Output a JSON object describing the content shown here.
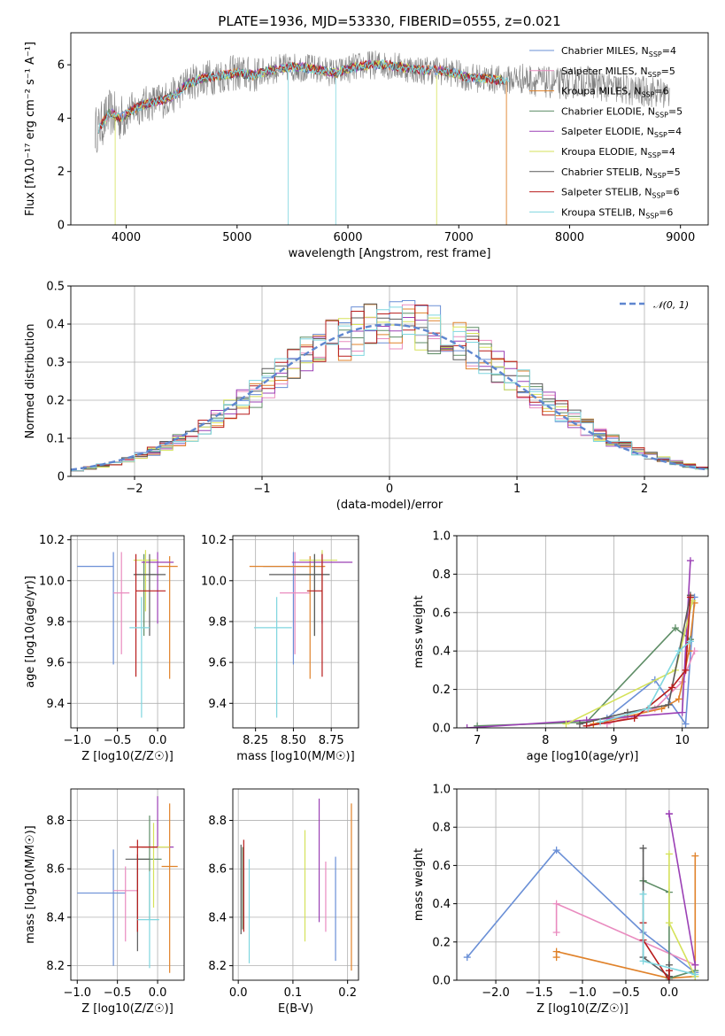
{
  "title": "PLATE=1936, MJD=53330, FIBERID=0555, z=0.021",
  "series_colors": [
    "#6a8fd6",
    "#e98bbf",
    "#e0822a",
    "#5e8d66",
    "#9b40b5",
    "#d5e25a",
    "#5a5a5a",
    "#b81c1c",
    "#7fd6df"
  ],
  "chart_data": [
    {
      "type": "line",
      "name": "spectrum",
      "xlabel": "wavelength [Angstrom, rest frame]",
      "ylabel": "Flux [fλ10⁻¹⁷ erg cm⁻² s⁻¹ A⁻¹]",
      "xlim": [
        3500,
        9250
      ],
      "ylim": [
        0,
        7.2
      ],
      "xticks": [
        4000,
        5000,
        6000,
        7000,
        8000,
        9000
      ],
      "yticks": [
        0,
        2,
        4,
        6
      ],
      "data_color": "#808080",
      "legend": [
        "Chabrier MILES, N_SSP=4",
        "Salpeter MILES, N_SSP=5",
        "Kroupa MILES, N_SSP=6",
        "Chabrier ELODIE, N_SSP=5",
        "Salpeter ELODIE, N_SSP=4",
        "Kroupa ELODIE, N_SSP=4",
        "Chabrier STELIB, N_SSP=5",
        "Salpeter STELIB, N_SSP=6",
        "Kroupa STELIB, N_SSP=6"
      ],
      "model_x": [
        3750,
        3850,
        3950,
        4050,
        4150,
        4250,
        4350,
        4450,
        4550,
        4700,
        4850,
        5000,
        5150,
        5300,
        5450,
        5600,
        5750,
        5900,
        6050,
        6200,
        6350,
        6500,
        6650,
        6800,
        6950,
        7100,
        7250,
        7400,
        7550,
        7700,
        7850,
        8000,
        8150,
        8300,
        8450,
        8600,
        8750,
        8900
      ],
      "model_y": [
        3.6,
        4.2,
        4.0,
        4.3,
        4.5,
        4.6,
        4.7,
        4.9,
        5.3,
        5.5,
        5.6,
        5.7,
        5.6,
        5.8,
        5.9,
        5.9,
        5.8,
        5.7,
        5.9,
        6.0,
        6.0,
        5.9,
        5.8,
        5.8,
        5.7,
        5.5,
        5.5,
        5.4,
        5.5,
        5.4,
        5.3,
        5.3,
        5.4,
        5.2,
        5.1,
        5.0,
        5.0,
        4.9
      ]
    },
    {
      "type": "histogram",
      "name": "residuals",
      "xlabel": "(data-model)/error",
      "ylabel": "Normed distribution",
      "xlim": [
        -2.5,
        2.5
      ],
      "ylim": [
        0,
        0.5
      ],
      "xticks": [
        -2,
        -1,
        0,
        1,
        2
      ],
      "yticks": [
        0,
        0.1,
        0.2,
        0.3,
        0.4,
        0.5
      ],
      "legend": "𝒩(0, 1)",
      "bin_width": 0.1
    },
    {
      "type": "errorbar",
      "name": "age-vs-Z",
      "xlabel": "Z [log10(Z/Z☉)]",
      "ylabel": "age  [log10(age/yr)]",
      "xlim": [
        -1.08,
        0.33
      ],
      "ylim": [
        9.28,
        10.22
      ],
      "xticks": [
        -1.0,
        -0.5,
        0.0
      ],
      "yticks": [
        9.4,
        9.6,
        9.8,
        10.0,
        10.2
      ],
      "points": [
        {
          "x": -0.55,
          "xerr": [
            0.45,
            0.0
          ],
          "y": 10.07,
          "yerr": [
            0.48,
            0.07
          ]
        },
        {
          "x": -0.45,
          "xerr": [
            0.1,
            0.1
          ],
          "y": 9.94,
          "yerr": [
            0.3,
            0.2
          ]
        },
        {
          "x": 0.15,
          "xerr": [
            0.15,
            0.1
          ],
          "y": 10.07,
          "yerr": [
            0.55,
            0.05
          ]
        },
        {
          "x": -0.17,
          "xerr": [
            0.12,
            0.15
          ],
          "y": 10.03,
          "yerr": [
            0.3,
            0.1
          ]
        },
        {
          "x": 0.0,
          "xerr": [
            0.2,
            0.2
          ],
          "y": 10.09,
          "yerr": [
            0.3,
            0.05
          ]
        },
        {
          "x": -0.15,
          "xerr": [
            0.15,
            0.15
          ],
          "y": 10.1,
          "yerr": [
            0.25,
            0.05
          ]
        },
        {
          "x": -0.1,
          "xerr": [
            0.2,
            0.2
          ],
          "y": 10.03,
          "yerr": [
            0.3,
            0.1
          ]
        },
        {
          "x": -0.27,
          "xerr": [
            0.0,
            0.37
          ],
          "y": 9.95,
          "yerr": [
            0.42,
            0.18
          ]
        },
        {
          "x": -0.2,
          "xerr": [
            0.15,
            0.1
          ],
          "y": 9.77,
          "yerr": [
            0.44,
            0.15
          ]
        }
      ]
    },
    {
      "type": "errorbar",
      "name": "age-vs-mass",
      "xlabel": "mass [log10(M/M☉)]",
      "ylabel": "",
      "xlim": [
        8.1,
        8.93
      ],
      "ylim": [
        9.28,
        10.22
      ],
      "xticks": [
        8.25,
        8.5,
        8.75
      ],
      "yticks": [
        9.4,
        9.6,
        9.8,
        10.0,
        10.2
      ],
      "points": [
        {
          "x": 8.5,
          "xerr": [
            0.2,
            0.2
          ],
          "y": 10.07,
          "yerr": [
            0.48,
            0.07
          ]
        },
        {
          "x": 8.51,
          "xerr": [
            0.1,
            0.1
          ],
          "y": 9.94,
          "yerr": [
            0.3,
            0.2
          ]
        },
        {
          "x": 8.61,
          "xerr": [
            0.4,
            0.1
          ],
          "y": 10.07,
          "yerr": [
            0.55,
            0.05
          ]
        },
        {
          "x": 8.64,
          "xerr": [
            0.12,
            0.1
          ],
          "y": 10.03,
          "yerr": [
            0.3,
            0.1
          ]
        },
        {
          "x": 8.69,
          "xerr": [
            0.2,
            0.2
          ],
          "y": 10.09,
          "yerr": [
            0.3,
            0.05
          ]
        },
        {
          "x": 8.69,
          "xerr": [
            0.15,
            0.1
          ],
          "y": 10.1,
          "yerr": [
            0.25,
            0.05
          ]
        },
        {
          "x": 8.64,
          "xerr": [
            0.3,
            0.1
          ],
          "y": 10.03,
          "yerr": [
            0.3,
            0.1
          ]
        },
        {
          "x": 8.69,
          "xerr": [
            0.1,
            0.0
          ],
          "y": 9.95,
          "yerr": [
            0.42,
            0.18
          ]
        },
        {
          "x": 8.39,
          "xerr": [
            0.15,
            0.1
          ],
          "y": 9.77,
          "yerr": [
            0.44,
            0.15
          ]
        }
      ]
    },
    {
      "type": "line",
      "name": "mass-weight-vs-age",
      "xlabel": "age  [log10(age/yr)]",
      "ylabel": "mass weight",
      "xlim": [
        6.7,
        10.38
      ],
      "ylim": [
        0,
        1.0
      ],
      "xticks": [
        7,
        8,
        9,
        10
      ],
      "yticks": [
        0.0,
        0.2,
        0.4,
        0.6,
        0.8,
        1.0
      ],
      "series": [
        {
          "x": [
            8.9,
            9.6,
            10.05,
            10.18
          ],
          "y": [
            0.05,
            0.25,
            0.02,
            0.68
          ]
        },
        {
          "x": [
            8.9,
            9.6,
            10.0,
            10.18
          ],
          "y": [
            0.02,
            0.1,
            0.24,
            0.4
          ]
        },
        {
          "x": [
            8.7,
            9.2,
            9.7,
            9.95,
            10.1,
            10.18
          ],
          "y": [
            0.02,
            0.06,
            0.1,
            0.15,
            0.4,
            0.65
          ]
        },
        {
          "x": [
            7.0,
            8.6,
            9.9,
            10.12
          ],
          "y": [
            0.01,
            0.03,
            0.52,
            0.46
          ]
        },
        {
          "x": [
            6.85,
            8.6,
            10.0,
            10.12
          ],
          "y": [
            0.0,
            0.04,
            0.08,
            0.87
          ]
        },
        {
          "x": [
            8.3,
            9.9,
            10.15
          ],
          "y": [
            0.02,
            0.3,
            0.66
          ]
        },
        {
          "x": [
            8.5,
            9.2,
            9.8,
            10.12
          ],
          "y": [
            0.02,
            0.08,
            0.12,
            0.69
          ]
        },
        {
          "x": [
            8.6,
            9.3,
            9.85,
            10.05,
            10.12
          ],
          "y": [
            0.01,
            0.05,
            0.21,
            0.3,
            0.68
          ]
        },
        {
          "x": [
            8.8,
            9.5,
            9.95,
            10.12
          ],
          "y": [
            0.03,
            0.1,
            0.4,
            0.45
          ]
        }
      ]
    },
    {
      "type": "errorbar",
      "name": "mass-vs-Z",
      "xlabel": "Z [log10(Z/Z☉)]",
      "ylabel": "mass [log10(M/M☉)]",
      "xlim": [
        -1.08,
        0.33
      ],
      "ylim": [
        8.14,
        8.93
      ],
      "xticks": [
        -1.0,
        -0.5,
        0.0
      ],
      "yticks": [
        8.2,
        8.4,
        8.6,
        8.8
      ],
      "points": [
        {
          "x": -0.55,
          "xerr": [
            0.45,
            0.15
          ],
          "y": 8.5,
          "yerr": [
            0.3,
            0.18
          ]
        },
        {
          "x": -0.4,
          "xerr": [
            0.15,
            0.15
          ],
          "y": 8.51,
          "yerr": [
            0.21,
            0.1
          ]
        },
        {
          "x": 0.15,
          "xerr": [
            0.1,
            0.1
          ],
          "y": 8.61,
          "yerr": [
            0.44,
            0.26
          ]
        },
        {
          "x": -0.1,
          "xerr": [
            0.15,
            0.15
          ],
          "y": 8.64,
          "yerr": [
            0.25,
            0.18
          ]
        },
        {
          "x": 0.0,
          "xerr": [
            0.2,
            0.2
          ],
          "y": 8.69,
          "yerr": [
            0.0,
            0.21
          ]
        },
        {
          "x": -0.05,
          "xerr": [
            0.2,
            0.2
          ],
          "y": 8.69,
          "yerr": [
            0.25,
            0.1
          ]
        },
        {
          "x": -0.25,
          "xerr": [
            0.15,
            0.15
          ],
          "y": 8.64,
          "yerr": [
            0.38,
            0.02
          ]
        },
        {
          "x": -0.25,
          "xerr": [
            0.1,
            0.25
          ],
          "y": 8.69,
          "yerr": [
            0.35,
            0.03
          ]
        },
        {
          "x": -0.1,
          "xerr": [
            0.15,
            0.12
          ],
          "y": 8.39,
          "yerr": [
            0.2,
            0.2
          ]
        }
      ]
    },
    {
      "type": "errorbar",
      "name": "mass-vs-EBV",
      "xlabel": "E(B-V)",
      "ylabel": "",
      "xlim": [
        -0.01,
        0.22
      ],
      "ylim": [
        8.14,
        8.93
      ],
      "xticks": [
        0.0,
        0.1,
        0.2
      ],
      "yticks": [
        8.2,
        8.4,
        8.6,
        8.8
      ],
      "points": [
        {
          "x": 0.178,
          "xerr": [
            0,
            0
          ],
          "y": 8.45,
          "yerr": [
            0.23,
            0.2
          ]
        },
        {
          "x": 0.16,
          "xerr": [
            0,
            0
          ],
          "y": 8.51,
          "yerr": [
            0.17,
            0.12
          ]
        },
        {
          "x": 0.207,
          "xerr": [
            0,
            0
          ],
          "y": 8.52,
          "yerr": [
            0.34,
            0.35
          ]
        },
        {
          "x": 0.008,
          "xerr": [
            0,
            0
          ],
          "y": 8.55,
          "yerr": [
            0.2,
            0.14
          ]
        },
        {
          "x": 0.148,
          "xerr": [
            0,
            0
          ],
          "y": 8.68,
          "yerr": [
            0.3,
            0.21
          ]
        },
        {
          "x": 0.122,
          "xerr": [
            0,
            0
          ],
          "y": 8.53,
          "yerr": [
            0.23,
            0.23
          ]
        },
        {
          "x": 0.005,
          "xerr": [
            0,
            0
          ],
          "y": 8.53,
          "yerr": [
            0.2,
            0.17
          ]
        },
        {
          "x": 0.01,
          "xerr": [
            0,
            0
          ],
          "y": 8.54,
          "yerr": [
            0.2,
            0.18
          ]
        },
        {
          "x": 0.02,
          "xerr": [
            0,
            0
          ],
          "y": 8.43,
          "yerr": [
            0.22,
            0.21
          ]
        }
      ]
    },
    {
      "type": "line",
      "name": "mass-weight-vs-Z",
      "xlabel": "Z [log10(Z/Z☉)]",
      "ylabel": "mass weight",
      "xlim": [
        -2.45,
        0.45
      ],
      "ylim": [
        0,
        1.0
      ],
      "xticks": [
        -2.0,
        -1.5,
        -1.0,
        -0.5,
        0.0
      ],
      "yticks": [
        0.0,
        0.2,
        0.4,
        0.6,
        0.8,
        1.0
      ],
      "series": [
        {
          "x": [
            -2.33,
            -1.3,
            -0.3,
            0.3
          ],
          "y": [
            0.12,
            0.68,
            0.25,
            0.04
          ]
        },
        {
          "x": [
            -1.3,
            -1.3,
            0.3
          ],
          "y": [
            0.25,
            0.4,
            0.08
          ]
        },
        {
          "x": [
            -1.3,
            -1.3,
            0.0,
            0.3,
            0.3
          ],
          "y": [
            0.12,
            0.15,
            0.01,
            0.02,
            0.65
          ]
        },
        {
          "x": [
            -0.3,
            -0.3,
            0.0,
            0.0,
            0.3
          ],
          "y": [
            0.52,
            0.52,
            0.46,
            0.01,
            0.05
          ]
        },
        {
          "x": [
            0.0,
            0.0,
            0.3
          ],
          "y": [
            0.87,
            0.87,
            0.08
          ]
        },
        {
          "x": [
            0.0,
            0.0,
            0.3
          ],
          "y": [
            0.66,
            0.3,
            0.02
          ]
        },
        {
          "x": [
            -0.3,
            -0.3,
            0.0,
            0.0
          ],
          "y": [
            0.69,
            0.12,
            0.02,
            0.08
          ]
        },
        {
          "x": [
            -0.3,
            -0.3,
            0.0,
            0.0
          ],
          "y": [
            0.3,
            0.21,
            0.0,
            0.05
          ]
        },
        {
          "x": [
            -0.3,
            -0.3,
            0.3
          ],
          "y": [
            0.45,
            0.1,
            0.03
          ]
        }
      ]
    }
  ]
}
